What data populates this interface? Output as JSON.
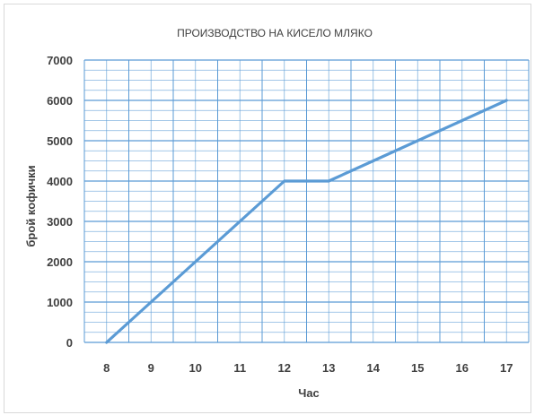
{
  "chart_data": {
    "type": "line",
    "title": "ПРОИЗВОДСТВО НА КИСЕЛО МЛЯКО",
    "xlabel": "Час",
    "ylabel": "брой кофички",
    "x": [
      8,
      9,
      10,
      11,
      12,
      13,
      14,
      15,
      16,
      17
    ],
    "series": [
      {
        "values": [
          0,
          1000,
          2000,
          3000,
          4000,
          4000,
          4500,
          5000,
          5500,
          6000
        ],
        "color": "#5b9bd5"
      }
    ],
    "ylim": [
      0,
      7000
    ],
    "yticks": [
      0,
      1000,
      2000,
      3000,
      4000,
      5000,
      6000,
      7000
    ],
    "grid": true,
    "grid_color": "#5b9bd5"
  }
}
